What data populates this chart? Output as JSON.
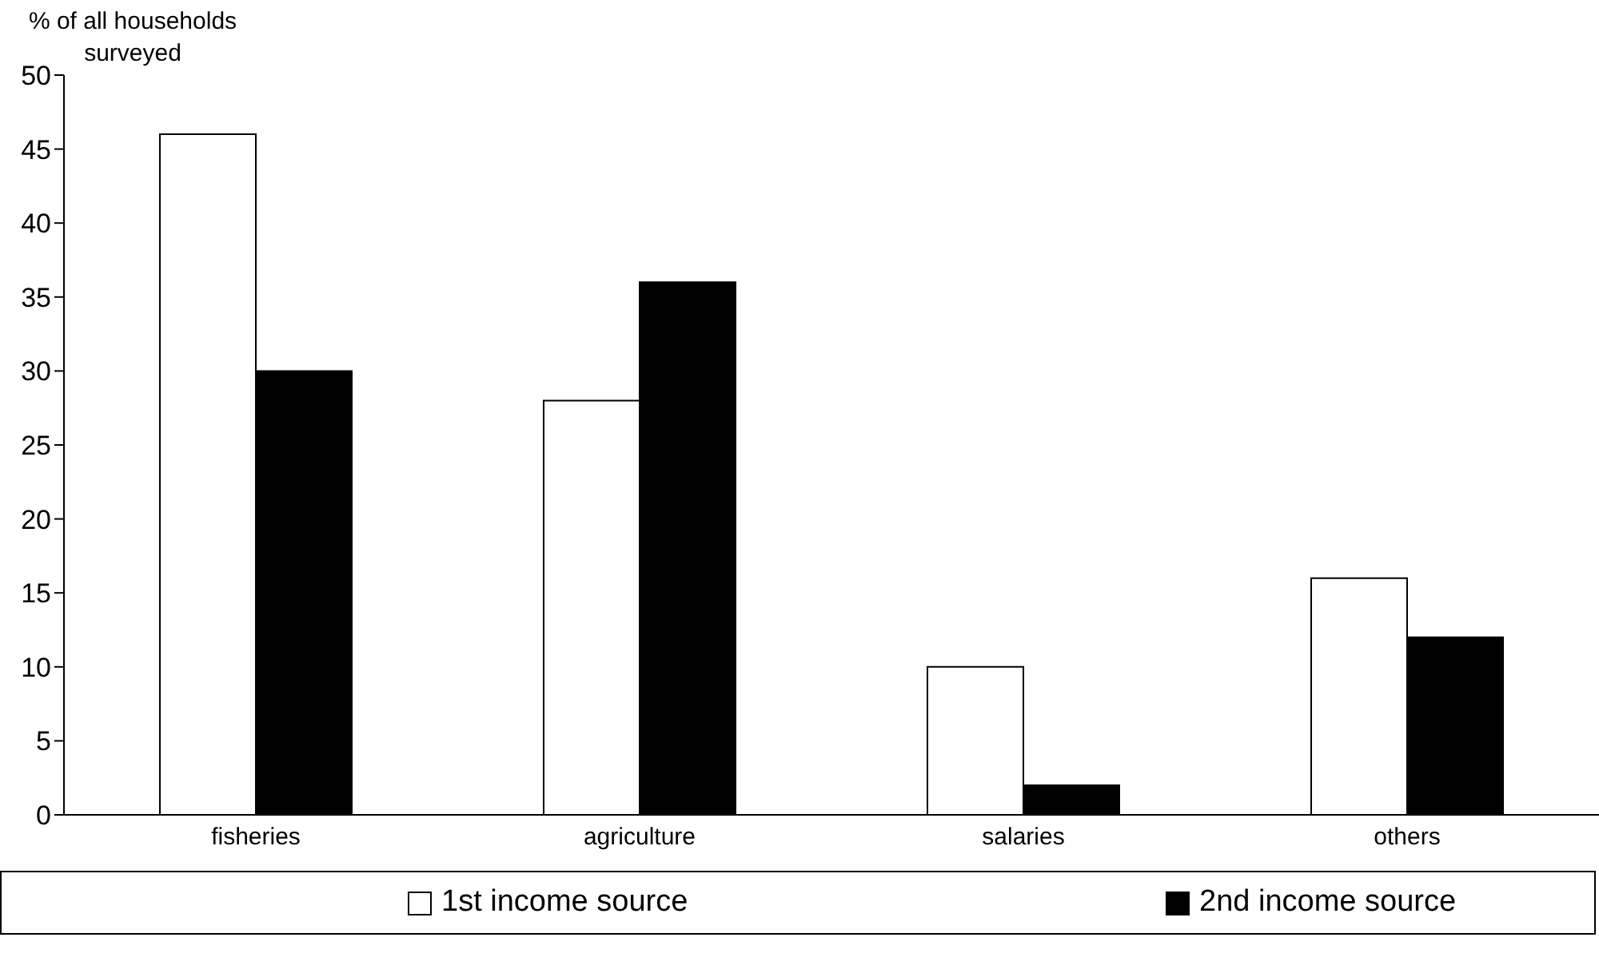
{
  "chart_data": {
    "type": "bar",
    "ylabel": "% of all households surveyed",
    "categories": [
      "fisheries",
      "agriculture",
      "salaries",
      "others"
    ],
    "series": [
      {
        "name": "1st income source",
        "color": "#ffffff",
        "values": [
          46,
          28,
          10,
          16
        ]
      },
      {
        "name": "2nd income source",
        "color": "#000000",
        "values": [
          30,
          36,
          2,
          12
        ]
      }
    ],
    "ylim": [
      0,
      50
    ],
    "yticks": [
      0,
      5,
      10,
      15,
      20,
      25,
      30,
      35,
      40,
      45,
      50
    ],
    "grid": false,
    "legend": "bottom"
  }
}
